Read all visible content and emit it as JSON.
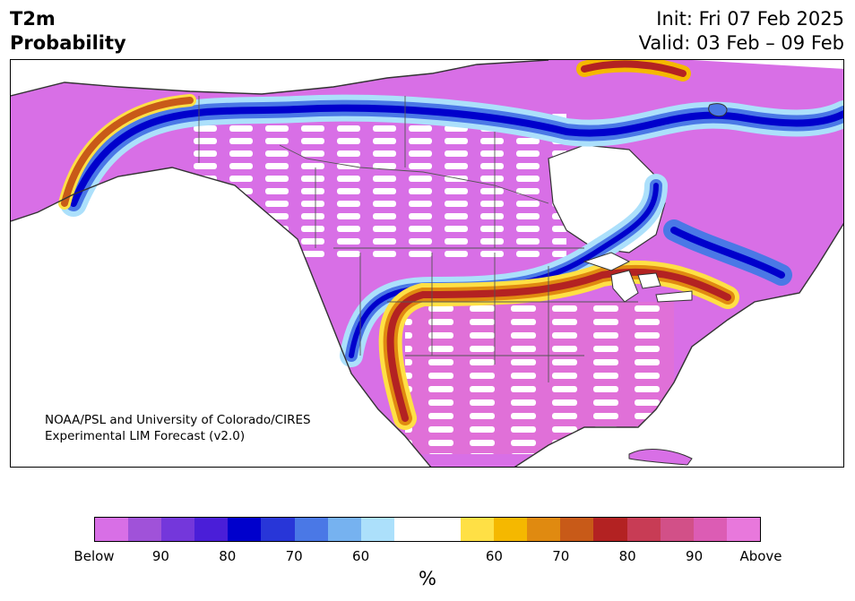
{
  "header": {
    "title_line1": "T2m",
    "title_line2": "Probability",
    "init": "Init: Fri 07 Feb 2025",
    "valid": "Valid: 03 Feb – 09 Feb"
  },
  "map": {
    "region": "North America",
    "credit_line1": "NOAA/PSL and University of Colorado/CIRES",
    "credit_line2": "Experimental LIM Forecast (v2.0)"
  },
  "colorbar": {
    "colors": [
      "#d86fe6",
      "#a052d9",
      "#7437db",
      "#4a1ed8",
      "#0000cc",
      "#2836d8",
      "#4a78e6",
      "#76b2f0",
      "#ace0fb",
      "#ffffff",
      "#ffffff",
      "#ffe045",
      "#f5b800",
      "#e08a10",
      "#c85a18",
      "#b32222",
      "#c83c55",
      "#d25088",
      "#dc5cb4",
      "#e878dc"
    ],
    "tick_labels": [
      "Below",
      "90",
      "80",
      "70",
      "60",
      "60",
      "70",
      "80",
      "90",
      "Above"
    ],
    "unit": "%"
  },
  "palette": {
    "below": "#d86fe6",
    "above": "#e070d8",
    "land_stroke": "#333333",
    "boundary_stroke": "#555555"
  }
}
